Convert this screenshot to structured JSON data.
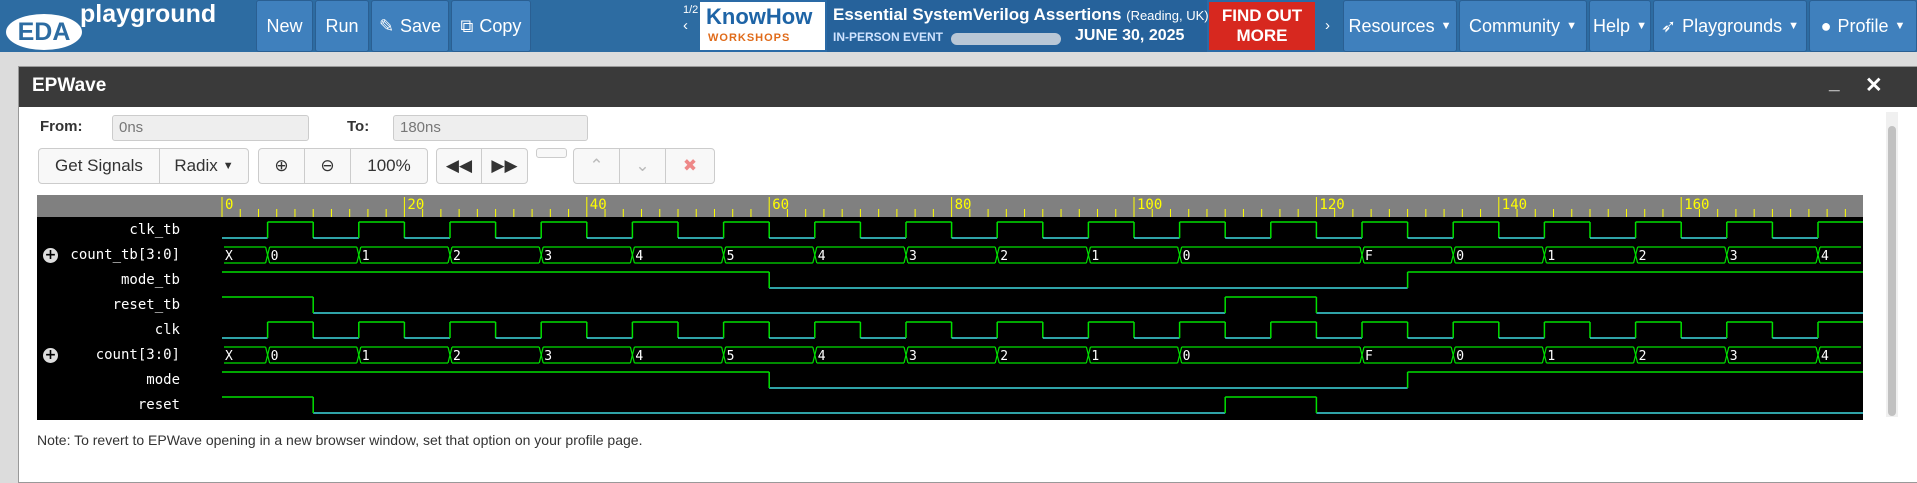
{
  "navbar": {
    "logo_eda": "EDA",
    "logo_playground": "playground",
    "buttons": {
      "new": "New",
      "run": "Run",
      "save": "Save",
      "copy": "Copy"
    },
    "menus": [
      "Resources",
      "Community",
      "Help",
      "Playgrounds",
      "Profile"
    ]
  },
  "ad": {
    "counter": "1/2",
    "brand": "KnowHow",
    "brand_sub": "WORKSHOPS",
    "title": "Essential SystemVerilog Assertions",
    "location": "(Reading, UK)",
    "event": "IN-PERSON EVENT",
    "date": "JUNE 30, 2025",
    "cta": "FIND OUT MORE"
  },
  "modal": {
    "title": "EPWave",
    "from_label": "From:",
    "from_value": "0ns",
    "to_label": "To:",
    "to_value": "180ns",
    "toolbar": {
      "get_signals": "Get Signals",
      "radix": "Radix",
      "zoom": "100%"
    },
    "note": "Note: To revert to EPWave opening in a new browser window, set that option on your profile page."
  },
  "waveform": {
    "time_range_ns": [
      0,
      180
    ],
    "ruler_labels": [
      "0",
      "20",
      "40",
      "60",
      "80",
      "100",
      "120",
      "140",
      "160"
    ],
    "clock_period_ns": 10,
    "signals": [
      {
        "name": "clk_tb",
        "type": "clock",
        "expandable": false
      },
      {
        "name": "count_tb[3:0]",
        "type": "bus",
        "expandable": true,
        "values": [
          [
            "X",
            0
          ],
          [
            "0",
            5
          ],
          [
            "1",
            15
          ],
          [
            "2",
            25
          ],
          [
            "3",
            35
          ],
          [
            "4",
            45
          ],
          [
            "5",
            55
          ],
          [
            "4",
            65
          ],
          [
            "3",
            75
          ],
          [
            "2",
            85
          ],
          [
            "1",
            95
          ],
          [
            "0",
            105
          ],
          [
            "F",
            125
          ],
          [
            "0",
            135
          ],
          [
            "1",
            145
          ],
          [
            "2",
            155
          ],
          [
            "3",
            165
          ],
          [
            "4",
            175
          ]
        ]
      },
      {
        "name": "mode_tb",
        "type": "bit",
        "expandable": false,
        "transitions": [
          [
            0,
            1
          ],
          [
            60,
            0
          ],
          [
            130,
            1
          ]
        ]
      },
      {
        "name": "reset_tb",
        "type": "bit",
        "expandable": false,
        "transitions": [
          [
            0,
            1
          ],
          [
            10,
            0
          ],
          [
            110,
            1
          ],
          [
            120,
            0
          ]
        ]
      },
      {
        "name": "clk",
        "type": "clock",
        "expandable": false
      },
      {
        "name": "count[3:0]",
        "type": "bus",
        "expandable": true,
        "values": [
          [
            "X",
            0
          ],
          [
            "0",
            5
          ],
          [
            "1",
            15
          ],
          [
            "2",
            25
          ],
          [
            "3",
            35
          ],
          [
            "4",
            45
          ],
          [
            "5",
            55
          ],
          [
            "4",
            65
          ],
          [
            "3",
            75
          ],
          [
            "2",
            85
          ],
          [
            "1",
            95
          ],
          [
            "0",
            105
          ],
          [
            "F",
            125
          ],
          [
            "0",
            135
          ],
          [
            "1",
            145
          ],
          [
            "2",
            155
          ],
          [
            "3",
            165
          ],
          [
            "4",
            175
          ]
        ]
      },
      {
        "name": "mode",
        "type": "bit",
        "expandable": false,
        "transitions": [
          [
            0,
            1
          ],
          [
            60,
            0
          ],
          [
            130,
            1
          ]
        ]
      },
      {
        "name": "reset",
        "type": "bit",
        "expandable": false,
        "transitions": [
          [
            0,
            1
          ],
          [
            10,
            0
          ],
          [
            110,
            1
          ],
          [
            120,
            0
          ]
        ]
      }
    ]
  },
  "colors": {
    "navbar": "#2d6ca2",
    "wave_high": "#00e000",
    "wave_low": "#3fd9e0",
    "ruler_text": "#ffff00"
  }
}
